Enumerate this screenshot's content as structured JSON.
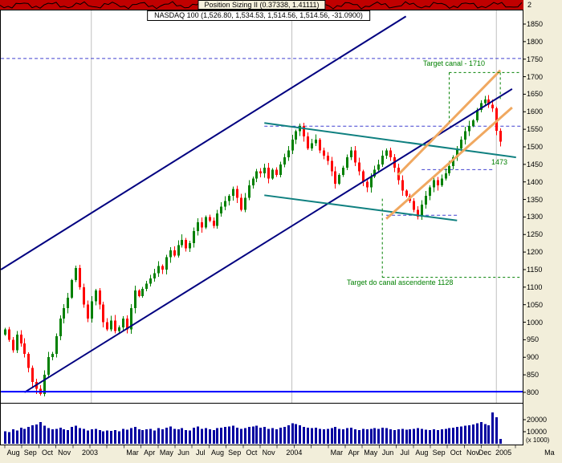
{
  "header": {
    "indicator_label": "Position Sizing II (0.37338, 1.41111)",
    "chart_title": "NASDAQ 100 (1,526.80, 1,534.53, 1,514.56, 1,514.56, -31.0900)"
  },
  "y_axis": {
    "max": 1850,
    "min": 800,
    "step": 50,
    "indicator_scale_label": "2"
  },
  "volume_axis": {
    "labels": [
      20000,
      10000
    ],
    "unit": "(x 1000)"
  },
  "x_axis": {
    "labels": [
      {
        "label": "Aug",
        "m": 0
      },
      {
        "label": "Sep",
        "m": 1
      },
      {
        "label": "Oct",
        "m": 2
      },
      {
        "label": "Nov",
        "m": 3
      },
      {
        "label": "2003",
        "m": 5,
        "year": true
      },
      {
        "label": "Mar",
        "m": 7
      },
      {
        "label": "Apr",
        "m": 8
      },
      {
        "label": "May",
        "m": 9
      },
      {
        "label": "Jun",
        "m": 10
      },
      {
        "label": "Jul",
        "m": 11
      },
      {
        "label": "Aug",
        "m": 12
      },
      {
        "label": "Sep",
        "m": 13
      },
      {
        "label": "Oct",
        "m": 14
      },
      {
        "label": "Nov",
        "m": 15
      },
      {
        "label": "2004",
        "m": 17,
        "year": true
      },
      {
        "label": "Mar",
        "m": 19
      },
      {
        "label": "Apr",
        "m": 20
      },
      {
        "label": "May",
        "m": 21
      },
      {
        "label": "Jun",
        "m": 22
      },
      {
        "label": "Jul",
        "m": 23
      },
      {
        "label": "Aug",
        "m": 24
      },
      {
        "label": "Sep",
        "m": 25
      },
      {
        "label": "Oct",
        "m": 26
      },
      {
        "label": "Nov",
        "m": 27
      },
      {
        "label": "Dec",
        "m": 27.7
      },
      {
        "label": "2005",
        "m": 29.3,
        "year": true
      },
      {
        "label": "Ma",
        "m": 31.5
      }
    ]
  },
  "annotations": [
    {
      "id": "target-upper",
      "text": "Target canal - 1710"
    },
    {
      "id": "level-1473",
      "text": "1473"
    },
    {
      "id": "target-lower",
      "text": "Target do canal ascendente 1128"
    }
  ],
  "colors": {
    "background": "#f2eeda",
    "pane_bg": "#ffffff",
    "pane_border": "#000000",
    "up_candle": "#008000",
    "down_candle": "#ff0000",
    "volume": "#0000a0",
    "channel_navy": "#000080",
    "channel_teal": "#0f8080",
    "channel_orange": "#f0a860",
    "target_green": "#008000",
    "level_blue_dashed": "#4040d0",
    "level_blue_solid": "#0000ff",
    "year_line": "#c0c0c0",
    "indicator_strip": "#c00000",
    "indicator_line": "#000000"
  },
  "chart_data": {
    "type": "candlestick",
    "title": "NASDAQ 100 weekly candlesticks with volume, trend channels and price targets",
    "x_range": "Aug 2002 - Jan 2005",
    "price_axis": {
      "min": 800,
      "max": 1850,
      "step": 50
    },
    "last_quote": {
      "open": 1526.8,
      "high": 1534.53,
      "low": 1514.56,
      "close": 1514.56,
      "change": -31.09
    },
    "closes": [
      980,
      950,
      920,
      965,
      940,
      910,
      870,
      830,
      810,
      795,
      850,
      900,
      910,
      960,
      1010,
      1040,
      1070,
      1120,
      1155,
      1100,
      1050,
      1010,
      1060,
      1090,
      1050,
      1000,
      980,
      1005,
      975,
      985,
      1010,
      980,
      1040,
      1090,
      1075,
      1095,
      1110,
      1125,
      1140,
      1160,
      1150,
      1185,
      1205,
      1190,
      1220,
      1235,
      1210,
      1225,
      1260,
      1285,
      1270,
      1300,
      1290,
      1275,
      1310,
      1330,
      1345,
      1360,
      1380,
      1355,
      1320,
      1355,
      1390,
      1410,
      1430,
      1425,
      1440,
      1410,
      1435,
      1420,
      1450,
      1470,
      1490,
      1520,
      1545,
      1560,
      1530,
      1495,
      1510,
      1520,
      1490,
      1475,
      1460,
      1430,
      1395,
      1420,
      1440,
      1470,
      1490,
      1455,
      1430,
      1400,
      1385,
      1415,
      1435,
      1450,
      1475,
      1490,
      1470,
      1440,
      1405,
      1375,
      1360,
      1345,
      1320,
      1301,
      1335,
      1360,
      1385,
      1405,
      1390,
      1410,
      1425,
      1445,
      1470,
      1495,
      1520,
      1545,
      1560,
      1575,
      1605,
      1625,
      1635,
      1620,
      1610,
      1546,
      1514.56
    ],
    "volumes": [
      10500,
      9800,
      12000,
      11000,
      13500,
      12500,
      14000,
      15500,
      16000,
      18000,
      15000,
      13000,
      12000,
      12500,
      13500,
      12000,
      11500,
      14000,
      15000,
      13000,
      12500,
      11000,
      12000,
      12500,
      11500,
      10500,
      11000,
      10800,
      11500,
      10200,
      12500,
      11800,
      13000,
      14000,
      12000,
      11500,
      12000,
      12500,
      11000,
      13000,
      12000,
      13500,
      14500,
      12500,
      12000,
      13000,
      11500,
      11000,
      13500,
      14500,
      12500,
      13000,
      12000,
      11500,
      13000,
      13500,
      14000,
      14500,
      15000,
      13500,
      12500,
      13000,
      14000,
      14500,
      15000,
      13500,
      14000,
      12500,
      13000,
      12000,
      13500,
      14000,
      15500,
      17000,
      16500,
      15500,
      14000,
      13500,
      13000,
      13500,
      12500,
      12000,
      12500,
      13000,
      14000,
      12500,
      12000,
      13000,
      13500,
      12000,
      11500,
      12500,
      12000,
      12500,
      13000,
      12500,
      13500,
      13000,
      12000,
      11500,
      12000,
      12500,
      11800,
      12000,
      12500,
      13000,
      12200,
      11800,
      11500,
      12000,
      11500,
      12000,
      12500,
      13000,
      13500,
      14000,
      14500,
      15000,
      15500,
      16000,
      17000,
      18000,
      16500,
      15500,
      26000,
      22000,
      4000
    ],
    "year_boundaries_weeks": [
      22,
      73,
      125
    ],
    "overlays": [
      {
        "name": "resistance-1750",
        "w1": -1,
        "p1": 1752,
        "w2": 133,
        "p2": 1752,
        "color": "level_blue_dashed",
        "width": 1,
        "dash": "4,3",
        "layer": "back"
      },
      {
        "name": "resistance-1559",
        "w1": 66,
        "p1": 1559,
        "w2": 133,
        "p2": 1559,
        "color": "level_blue_dashed",
        "width": 1,
        "dash": "4,3",
        "layer": "back"
      },
      {
        "name": "support-1435",
        "w1": 106,
        "p1": 1435,
        "w2": 124,
        "p2": 1435,
        "color": "level_blue_dashed",
        "width": 1,
        "dash": "4,3",
        "layer": "back"
      },
      {
        "name": "support-1305",
        "w1": 97,
        "p1": 1305,
        "w2": 115,
        "p2": 1305,
        "color": "level_blue_dashed",
        "width": 1,
        "dash": "4,3",
        "layer": "back"
      },
      {
        "name": "ascending-channel-upper",
        "w1": -1,
        "p1": 1150,
        "w2": 102,
        "p2": 1872,
        "color": "channel_navy",
        "width": 2,
        "dash": null,
        "layer": "front"
      },
      {
        "name": "ascending-channel-lower",
        "w1": 5,
        "p1": 800,
        "w2": 129,
        "p2": 1665,
        "color": "channel_navy",
        "width": 2,
        "dash": null,
        "layer": "front"
      },
      {
        "name": "descending-channel-upper",
        "w1": 66,
        "p1": 1568,
        "w2": 130,
        "p2": 1470,
        "color": "channel_teal",
        "width": 2,
        "dash": null,
        "layer": "front"
      },
      {
        "name": "descending-channel-lower",
        "w1": 66,
        "p1": 1362,
        "w2": 115,
        "p2": 1290,
        "color": "channel_teal",
        "width": 2,
        "dash": null,
        "layer": "front"
      },
      {
        "name": "steep-channel-upper",
        "w1": 100,
        "p1": 1420,
        "w2": 126,
        "p2": 1718,
        "color": "channel_orange",
        "width": 3,
        "dash": null,
        "layer": "front"
      },
      {
        "name": "steep-channel-lower",
        "w1": 97,
        "p1": 1295,
        "w2": 129,
        "p2": 1612,
        "color": "channel_orange",
        "width": 3,
        "dash": null,
        "layer": "front"
      },
      {
        "name": "target-1710-horizontal",
        "w1": 113,
        "p1": 1712,
        "w2": 131,
        "p2": 1712,
        "color": "target_green",
        "width": 1,
        "dash": "3,3",
        "layer": "front"
      },
      {
        "name": "target-1710-vertical-left",
        "w1": 113,
        "p1": 1712,
        "w2": 113,
        "p2": 1572,
        "color": "target_green",
        "width": 1,
        "dash": "3,3",
        "layer": "front"
      },
      {
        "name": "target-1710-vertical-right",
        "w1": 126,
        "p1": 1712,
        "w2": 126,
        "p2": 1635,
        "color": "target_green",
        "width": 1,
        "dash": "3,3",
        "layer": "front"
      },
      {
        "name": "target-1128-horizontal",
        "w1": 96,
        "p1": 1128,
        "w2": 131,
        "p2": 1128,
        "color": "target_green",
        "width": 1,
        "dash": "3,3",
        "layer": "front"
      },
      {
        "name": "target-1128-vertical",
        "w1": 96,
        "p1": 1352,
        "w2": 96,
        "p2": 1128,
        "color": "target_green",
        "width": 1,
        "dash": "3,3",
        "layer": "front"
      },
      {
        "name": "support-800",
        "w1": -1,
        "p1": 802,
        "w2": 133,
        "p2": 802,
        "color": "level_blue_solid",
        "width": 2,
        "dash": null,
        "layer": "front"
      }
    ]
  }
}
